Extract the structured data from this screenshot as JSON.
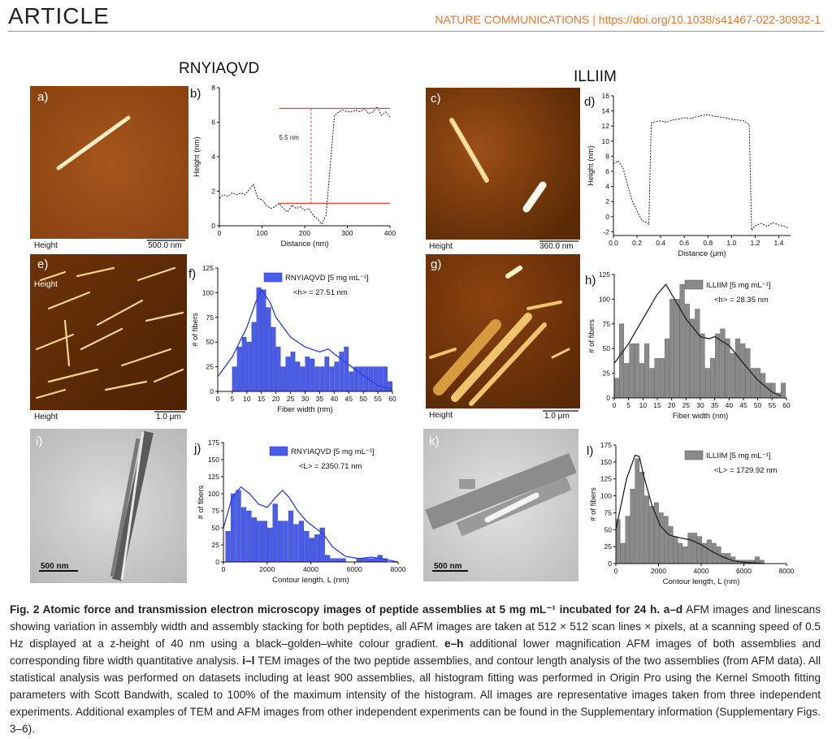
{
  "header": {
    "section": "ARTICLE",
    "journal": "NATURE COMMUNICATIONS | https://doi.org/10.1038/s41467-022-30932-1"
  },
  "peptides": {
    "left": "RNYIAQVD",
    "right": "ILLIIM"
  },
  "images": {
    "a": {
      "letter": "a)",
      "channel": "Height",
      "scale": "500.0 nm"
    },
    "c": {
      "letter": "c)",
      "channel": "Height",
      "scale": "360.0 nm"
    },
    "e": {
      "letter": "e)",
      "channel_top": "Height",
      "channel": "Height",
      "scale": "1.0 μm"
    },
    "g": {
      "letter": "g)",
      "channel": "Height",
      "scale": "1.0 μm"
    },
    "i": {
      "letter": "i)",
      "scale": "500 nm"
    },
    "k": {
      "letter": "k)",
      "scale": "500 nm"
    }
  },
  "colors": {
    "blue_bar": "#4a5de8",
    "gray_bar": "#8a8a8a",
    "red_line": "#e8413b",
    "afm_dark": "#5a2a05",
    "afm_mid": "#a9561a"
  },
  "chart_data": [
    {
      "id": "b",
      "letter": "b)",
      "type": "line",
      "xlabel": "Distance (nm)",
      "ylabel": "Height (nm)",
      "xlim": [
        0,
        400
      ],
      "ylim": [
        0,
        8
      ],
      "xticks": [
        0,
        100,
        200,
        300,
        400
      ],
      "yticks": [
        0,
        2,
        4,
        6,
        8
      ],
      "annotation": "5.5 nm",
      "reference_lines": [
        1.3,
        6.8
      ],
      "x": [
        0,
        10,
        20,
        30,
        40,
        50,
        60,
        70,
        80,
        90,
        100,
        110,
        120,
        130,
        140,
        150,
        160,
        170,
        180,
        190,
        200,
        210,
        220,
        230,
        240,
        250,
        260,
        270,
        280,
        290,
        300,
        310,
        320,
        330,
        340,
        350,
        360,
        370,
        380,
        390,
        400
      ],
      "y": [
        1.6,
        1.8,
        1.7,
        1.9,
        1.8,
        1.9,
        1.8,
        2.1,
        2.4,
        1.6,
        1.5,
        1.2,
        1.0,
        1.1,
        1.3,
        1.0,
        0.8,
        1.2,
        1.0,
        1.1,
        0.9,
        1.0,
        0.6,
        0.4,
        0.1,
        0.6,
        3.5,
        6.4,
        6.6,
        6.7,
        6.6,
        6.6,
        6.7,
        6.6,
        6.8,
        6.5,
        6.6,
        6.9,
        6.4,
        6.6,
        6.3
      ]
    },
    {
      "id": "d",
      "letter": "d)",
      "type": "line",
      "xlabel": "Distance (μm)",
      "ylabel": "Height (nm)",
      "xlim": [
        0,
        1.5
      ],
      "ylim": [
        -2.5,
        16
      ],
      "xticks": [
        0.0,
        0.2,
        0.4,
        0.6,
        0.8,
        1.0,
        1.2,
        1.4
      ],
      "yticks": [
        -2,
        0,
        2,
        4,
        6,
        8,
        10,
        12,
        14,
        16
      ],
      "x": [
        0,
        0.04,
        0.08,
        0.12,
        0.16,
        0.2,
        0.24,
        0.28,
        0.3,
        0.32,
        0.36,
        0.4,
        0.45,
        0.5,
        0.55,
        0.6,
        0.65,
        0.7,
        0.75,
        0.8,
        0.85,
        0.9,
        0.95,
        1.0,
        1.05,
        1.1,
        1.15,
        1.17,
        1.2,
        1.25,
        1.3,
        1.35,
        1.4,
        1.45,
        1.48
      ],
      "y": [
        7.0,
        7.4,
        6.5,
        4.2,
        2.0,
        0.8,
        -0.5,
        -0.8,
        -1.0,
        12.4,
        12.6,
        12.7,
        12.5,
        12.8,
        12.9,
        13.1,
        13.0,
        13.2,
        13.4,
        13.5,
        13.3,
        13.2,
        13.1,
        12.9,
        12.8,
        12.7,
        12.2,
        -1.8,
        -1.2,
        -0.9,
        -1.3,
        -0.8,
        -1.1,
        -1.3,
        -1.5
      ]
    },
    {
      "id": "f",
      "letter": "f)",
      "type": "bar",
      "xlabel": "Fiber width (nm)",
      "ylabel": "# of fibers",
      "xlim": [
        0,
        60
      ],
      "ylim": [
        0,
        125
      ],
      "xticks": [
        0,
        5,
        10,
        15,
        20,
        25,
        30,
        35,
        40,
        45,
        50,
        55,
        60
      ],
      "yticks": [
        0,
        25,
        50,
        75,
        100,
        125
      ],
      "legend": "RNYIAQVD [5 mg mL⁻¹]",
      "stat": "<h> = 27.51 nm",
      "bin_start": 5,
      "bin_width": 1.67,
      "values": [
        25,
        45,
        55,
        50,
        70,
        105,
        103,
        85,
        65,
        45,
        25,
        35,
        40,
        30,
        25,
        35,
        33,
        25,
        25,
        35,
        25,
        30,
        40,
        45,
        20,
        25,
        25,
        25,
        25,
        25,
        25,
        25,
        10
      ],
      "smooth_x": [
        0,
        5,
        10,
        13,
        15,
        18,
        20,
        25,
        30,
        35,
        38,
        40,
        45,
        50,
        55,
        60
      ],
      "smooth_y": [
        15,
        35,
        65,
        90,
        103,
        90,
        75,
        55,
        45,
        40,
        43,
        38,
        27,
        16,
        6,
        2
      ]
    },
    {
      "id": "h",
      "letter": "h)",
      "type": "bar",
      "xlabel": "Fiber width (nm)",
      "ylabel": "# of fibers",
      "xlim": [
        0,
        60
      ],
      "ylim": [
        0,
        125
      ],
      "xticks": [
        0,
        5,
        10,
        15,
        20,
        25,
        30,
        35,
        40,
        45,
        50,
        55,
        60
      ],
      "yticks": [
        0,
        25,
        50,
        75,
        100,
        125
      ],
      "legend": "ILLIIM [5 mg mL⁻¹]",
      "stat": "<h> = 28.35 nm",
      "bin_start": 0,
      "bin_width": 1.76,
      "values": [
        20,
        75,
        35,
        55,
        55,
        35,
        55,
        30,
        40,
        40,
        60,
        100,
        100,
        115,
        95,
        80,
        90,
        65,
        30,
        40,
        65,
        70,
        60,
        45,
        60,
        55,
        50,
        30,
        30,
        25,
        15,
        15,
        5,
        15
      ],
      "smooth_x": [
        0,
        5,
        10,
        15,
        18,
        20,
        25,
        30,
        33,
        35,
        40,
        45,
        50,
        55,
        58
      ],
      "smooth_y": [
        35,
        55,
        80,
        105,
        115,
        105,
        80,
        62,
        60,
        62,
        53,
        35,
        18,
        6,
        2
      ]
    },
    {
      "id": "j",
      "letter": "j)",
      "type": "bar",
      "xlabel": "Contour length, L (nm)",
      "ylabel": "# of fibers",
      "xlim": [
        0,
        8000
      ],
      "ylim": [
        0,
        175
      ],
      "xticks": [
        0,
        2000,
        4000,
        6000,
        8000
      ],
      "yticks": [
        0,
        25,
        50,
        75,
        100,
        125,
        150,
        175
      ],
      "legend": "RNYIAQVD [5 mg mL⁻¹]",
      "stat": "<L> = 2350.71 nm",
      "bin_start": 100,
      "bin_width": 240,
      "values": [
        45,
        100,
        105,
        80,
        75,
        65,
        60,
        60,
        50,
        85,
        60,
        60,
        75,
        55,
        60,
        45,
        35,
        40,
        50,
        10,
        5,
        5,
        5,
        0,
        0,
        5,
        5,
        5,
        5,
        10,
        5,
        0
      ],
      "smooth_x": [
        0,
        400,
        800,
        1200,
        1600,
        2000,
        2400,
        2700,
        3000,
        3400,
        3800,
        4200,
        4600,
        5000,
        5600,
        6200,
        6800,
        7200,
        8000
      ],
      "smooth_y": [
        50,
        95,
        110,
        100,
        85,
        80,
        95,
        105,
        95,
        75,
        60,
        50,
        40,
        22,
        8,
        5,
        7,
        5,
        0
      ]
    },
    {
      "id": "l",
      "letter": "l)",
      "type": "bar",
      "xlabel": "Contour length, L (nm)",
      "ylabel": "# of fibers",
      "xlim": [
        0,
        8000
      ],
      "ylim": [
        0,
        175
      ],
      "xticks": [
        0,
        2000,
        4000,
        6000,
        8000
      ],
      "yticks": [
        0,
        25,
        50,
        75,
        100,
        125,
        150,
        175
      ],
      "legend": "ILLIIM [5 mg mL⁻¹]",
      "stat": "<L> = 1729.92 nm",
      "bin_start": 0,
      "bin_width": 225,
      "values": [
        65,
        30,
        70,
        110,
        155,
        135,
        100,
        85,
        90,
        75,
        70,
        55,
        40,
        30,
        25,
        45,
        45,
        40,
        30,
        35,
        30,
        25,
        15,
        15,
        10,
        5,
        5,
        5,
        5,
        10,
        5,
        0
      ],
      "smooth_x": [
        0,
        500,
        900,
        1100,
        1300,
        1700,
        2100,
        2500,
        3000,
        3500,
        4000,
        4500,
        5000,
        5500,
        6000,
        7000
      ],
      "smooth_y": [
        50,
        125,
        160,
        158,
        130,
        85,
        55,
        42,
        38,
        35,
        28,
        18,
        10,
        4,
        2,
        0
      ]
    }
  ],
  "caption": {
    "label": "Fig. 2 Atomic force and transmission electron microscopy images of peptide assemblies at 5 mg mL⁻¹ incubated for 24 h. ",
    "ad_label": "a–d",
    "ad_text": " AFM images and linescans showing variation in assembly width and assembly stacking for both peptides, all AFM images are taken at 512 × 512 scan lines × pixels, at a scanning speed of 0.5 Hz displayed at a z-height of 40 nm using a black–golden–white colour gradient. ",
    "eh_label": "e–h",
    "eh_text": " additional lower magnification AFM images of both assemblies and corresponding fibre width quantitative analysis. ",
    "il_label": "i–l",
    "il_text": " TEM images of the two peptide assemblies, and contour length analysis of the two assemblies (from AFM data). All statistical analysis was performed on datasets including at least 900 assemblies, all histogram fitting was performed in Origin Pro using the Kernel Smooth fitting parameters with Scott Bandwith, scaled to 100% of the maximum intensity of the histogram. All images are representative images taken from three independent experiments. Additional examples of TEM and AFM images from other independent experiments can be found in the Supplementary information (Supplementary Figs. 3–6)."
  }
}
